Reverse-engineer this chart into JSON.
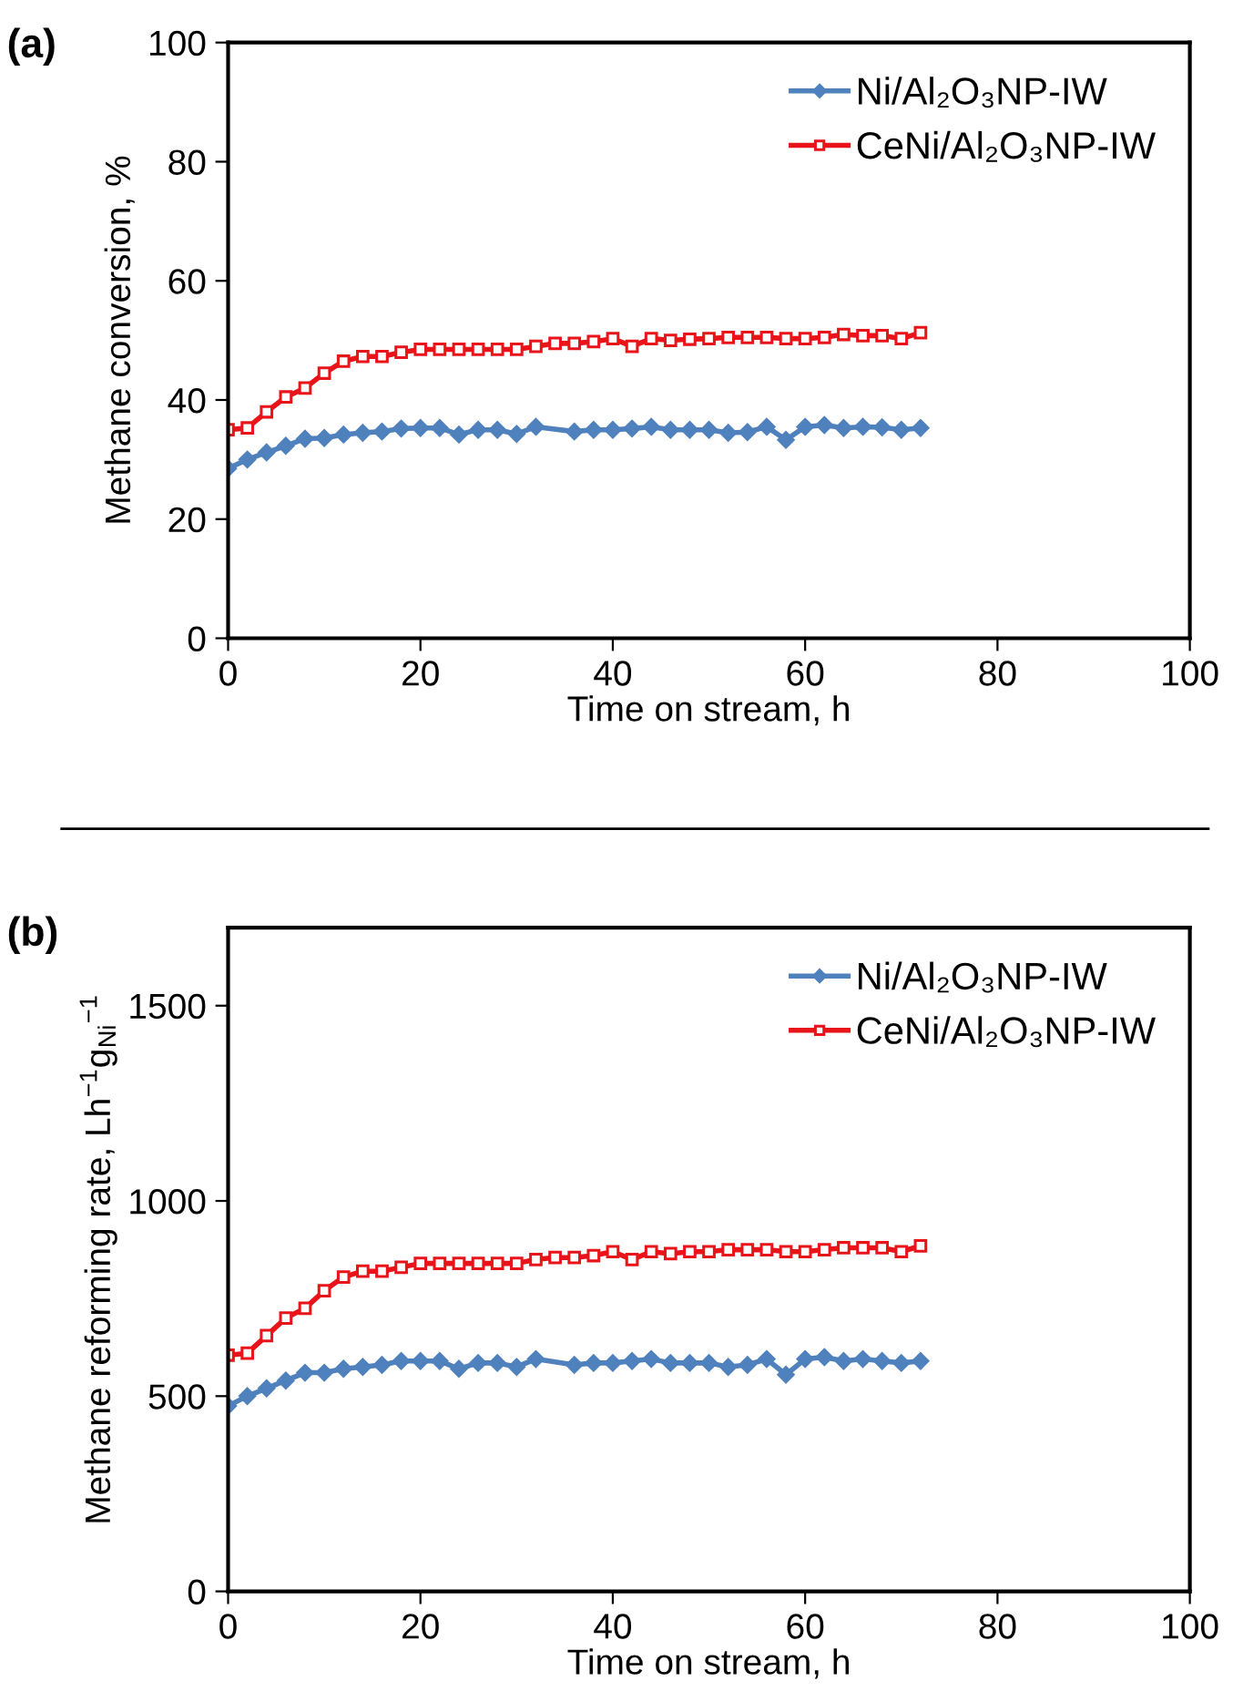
{
  "chart_data": [
    {
      "type": "line",
      "title": "(a)",
      "xlabel": "Time on stream, h",
      "ylabel": "Methane conversion, %",
      "xlim": [
        0,
        100
      ],
      "xticks": [
        0,
        20,
        40,
        60,
        80,
        100
      ],
      "ylim": [
        0,
        100
      ],
      "yticks": [
        0,
        20,
        40,
        60,
        80,
        100
      ],
      "grid": false,
      "legend": "top right",
      "series": [
        {
          "name": "Ni/Al₂O₃NP-IW",
          "color": "#4f81bd",
          "marker": "diamond",
          "x": [
            0,
            2,
            4,
            6,
            8,
            10,
            12,
            14,
            16,
            18,
            20,
            22,
            24,
            26,
            28,
            30,
            32,
            36,
            38,
            40,
            42,
            44,
            46,
            48,
            50,
            52,
            54,
            56,
            58,
            60,
            62,
            64,
            66,
            68,
            70,
            72
          ],
          "values": [
            28.5,
            30,
            31.2,
            32.3,
            33.5,
            33.6,
            34.2,
            34.5,
            34.7,
            35.2,
            35.3,
            35.3,
            34.2,
            35,
            35,
            34.3,
            35.5,
            34.7,
            35,
            35,
            35.2,
            35.5,
            35,
            35,
            35,
            34.5,
            34.6,
            35.5,
            33.3,
            35.5,
            35.8,
            35.3,
            35.5,
            35.4,
            35,
            35.3
          ]
        },
        {
          "name": "CeNi/Al₂O₃NP-IW",
          "color": "#e8141a",
          "marker": "square",
          "x": [
            0,
            2,
            4,
            6,
            8,
            10,
            12,
            14,
            16,
            18,
            20,
            22,
            24,
            26,
            28,
            30,
            32,
            34,
            36,
            38,
            40,
            42,
            44,
            46,
            48,
            50,
            52,
            54,
            56,
            58,
            60,
            62,
            64,
            66,
            68,
            70,
            72
          ],
          "values": [
            35,
            35.3,
            38,
            40.5,
            42,
            44.5,
            46.5,
            47.3,
            47.3,
            48,
            48.5,
            48.5,
            48.5,
            48.5,
            48.5,
            48.5,
            49,
            49.5,
            49.5,
            49.8,
            50.3,
            49,
            50.3,
            50,
            50.2,
            50.3,
            50.5,
            50.5,
            50.5,
            50.3,
            50.3,
            50.5,
            51,
            50.8,
            50.8,
            50.3,
            51.3
          ]
        }
      ]
    },
    {
      "type": "line",
      "title": "(b)",
      "xlabel": "Time on stream, h",
      "ylabel": "Methane reforming rate, Lh$^{−1}$g$_{Ni}$$^{−1}$",
      "xlim": [
        0,
        100
      ],
      "xticks": [
        0,
        20,
        40,
        60,
        80,
        100
      ],
      "ylim": [
        0,
        1700
      ],
      "yticks": [
        0,
        500,
        1000,
        1500
      ],
      "grid": false,
      "legend": "top right",
      "series": [
        {
          "name": "Ni/Al₂O₃NP-IW",
          "color": "#4f81bd",
          "marker": "diamond",
          "x": [
            0,
            2,
            4,
            6,
            8,
            10,
            12,
            14,
            16,
            18,
            20,
            22,
            24,
            26,
            28,
            30,
            32,
            36,
            38,
            40,
            42,
            44,
            46,
            48,
            50,
            52,
            54,
            56,
            58,
            60,
            62,
            64,
            66,
            68,
            70,
            72
          ],
          "values": [
            475,
            500,
            520,
            540,
            560,
            560,
            570,
            575,
            580,
            590,
            590,
            590,
            570,
            585,
            585,
            575,
            595,
            580,
            585,
            585,
            590,
            595,
            585,
            585,
            585,
            575,
            580,
            595,
            555,
            595,
            600,
            590,
            595,
            590,
            585,
            590
          ]
        },
        {
          "name": "CeNi/Al₂O₃NP-IW",
          "color": "#e8141a",
          "marker": "square",
          "x": [
            0,
            2,
            4,
            6,
            8,
            10,
            12,
            14,
            16,
            18,
            20,
            22,
            24,
            26,
            28,
            30,
            32,
            34,
            36,
            38,
            40,
            42,
            44,
            46,
            48,
            50,
            52,
            54,
            56,
            58,
            60,
            62,
            64,
            66,
            68,
            70,
            72
          ],
          "values": [
            605,
            610,
            655,
            700,
            725,
            770,
            805,
            820,
            820,
            830,
            840,
            840,
            840,
            840,
            840,
            840,
            850,
            855,
            855,
            860,
            870,
            850,
            870,
            865,
            870,
            870,
            875,
            875,
            875,
            870,
            870,
            875,
            880,
            880,
            880,
            870,
            885
          ]
        }
      ]
    }
  ]
}
